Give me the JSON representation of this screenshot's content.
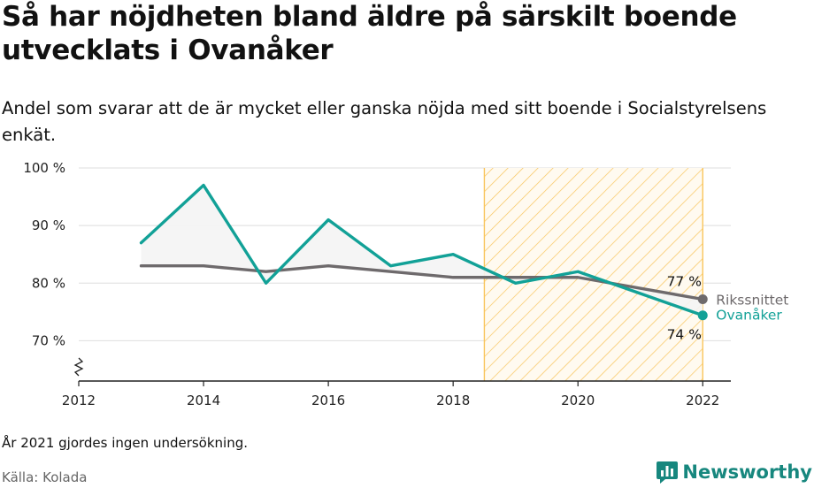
{
  "header": {
    "title": "Så har nöjdheten bland äldre på särskilt boende utvecklats i Ovanåker",
    "subtitle": "Andel som svarar att de är mycket eller ganska nöjda med sitt boende i Socialstyrelsens enkät."
  },
  "footer": {
    "note": "År 2021 gjordes ingen undersökning.",
    "source": "Källa: Kolada",
    "brand": "Newsworthy"
  },
  "colors": {
    "ovanaker": "#12a197",
    "riket": "#6e6a6c",
    "highlight": "#f9c55c",
    "fill": "#f4f4f4",
    "grid": "#dedede",
    "brand": "#17877e"
  },
  "chart_data": {
    "type": "line",
    "x": [
      2013,
      2014,
      2015,
      2016,
      2017,
      2018,
      2019,
      2020,
      2022
    ],
    "series": [
      {
        "name": "Ovanåker",
        "values": [
          87,
          97,
          80,
          91,
          83,
          85,
          80,
          82,
          74.4
        ]
      },
      {
        "name": "Rikssnittet",
        "values": [
          83,
          83,
          82,
          83,
          82,
          81,
          81,
          81,
          77.2
        ]
      }
    ],
    "end_value_labels": {
      "Rikssnittet": "77 %",
      "Ovanåker": "74 %"
    },
    "xlim": [
      2012,
      2022.45
    ],
    "ylim": [
      63,
      100
    ],
    "x_ticks": [
      2012,
      2014,
      2016,
      2018,
      2020,
      2022
    ],
    "x_tick_labels": [
      "2012",
      "2014",
      "2016",
      "2018",
      "2020",
      "2022"
    ],
    "y_ticks": [
      70,
      80,
      90,
      100
    ],
    "y_tick_labels": [
      "70 %",
      "80 %",
      "90 %",
      "100 %"
    ],
    "highlight_range": [
      2018.5,
      2022
    ],
    "grid": true,
    "y_axis_break": true,
    "fill_between": true
  }
}
